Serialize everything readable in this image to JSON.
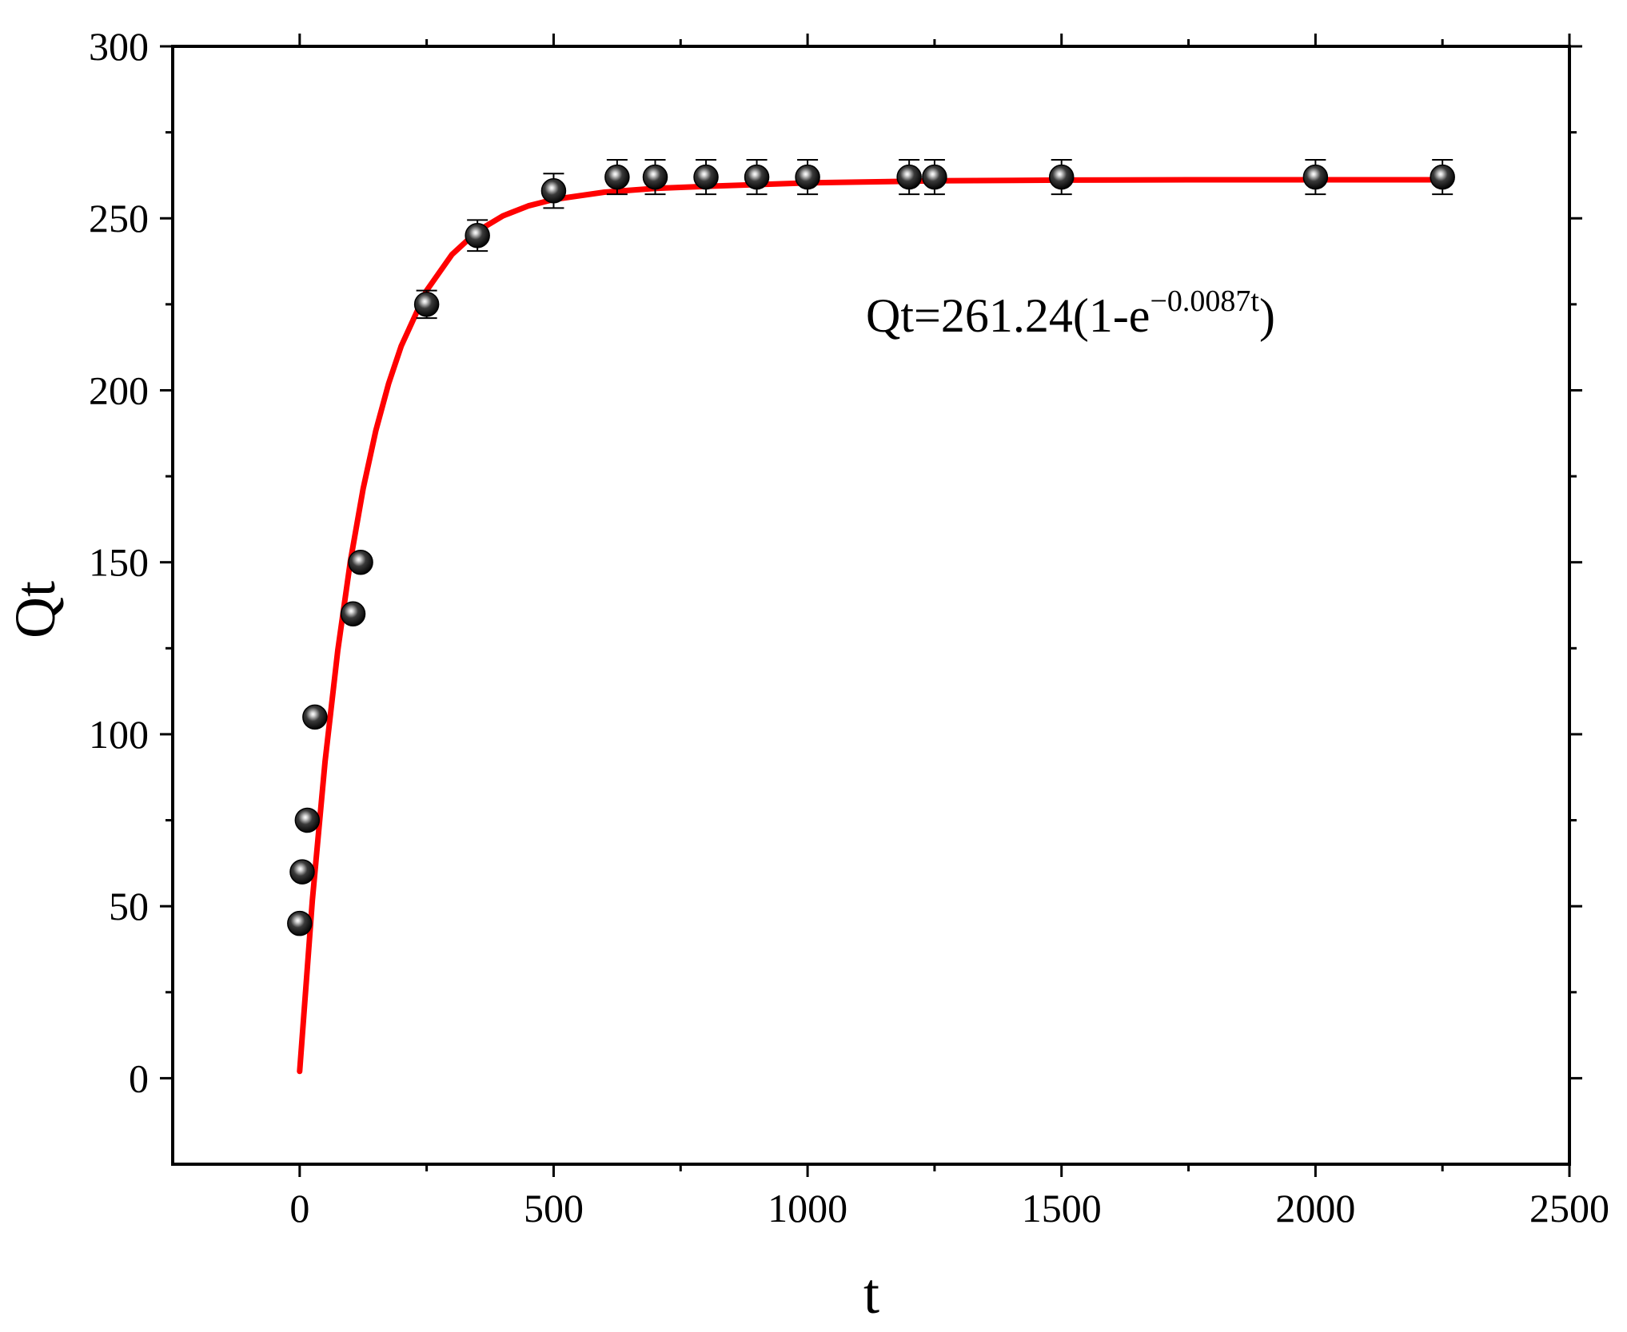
{
  "chart_data": {
    "type": "scatter",
    "xlabel": "t",
    "ylabel": "Qt",
    "xlim": [
      -250,
      2500
    ],
    "ylim": [
      -25,
      300
    ],
    "xticks": [
      0,
      500,
      1000,
      1500,
      2000,
      2500
    ],
    "yticks": [
      0,
      50,
      100,
      150,
      200,
      250,
      300
    ],
    "grid": false,
    "annotation": {
      "text_main": "Qt=261.24(1-e",
      "text_sup": "−0.0087t",
      "text_end": ")"
    },
    "series": [
      {
        "kind": "points",
        "color": "#000000",
        "x": [
          0,
          5,
          15,
          30,
          105,
          120,
          250,
          350,
          500,
          625,
          700,
          800,
          900,
          1000,
          1200,
          1250,
          1500,
          2000,
          2250
        ],
        "y": [
          45,
          60,
          75,
          105,
          135,
          150,
          225,
          245,
          258,
          262,
          262,
          262,
          262,
          262,
          262,
          262,
          262,
          262,
          262
        ],
        "error": [
          1.5,
          1.5,
          1.5,
          1.5,
          1.5,
          1.5,
          4,
          4.5,
          5,
          5,
          5,
          5,
          5,
          5,
          5,
          5,
          5,
          5,
          5
        ]
      },
      {
        "kind": "fit",
        "color": "#ff0000",
        "x": [
          0,
          25,
          50,
          75,
          100,
          125,
          150,
          175,
          200,
          250,
          300,
          350,
          400,
          450,
          500,
          600,
          700,
          800,
          1000,
          1250,
          1500,
          1750,
          2000,
          2250
        ],
        "y": [
          2,
          51.8,
          92.1,
          124.4,
          150.4,
          171.4,
          188.3,
          201.9,
          212.9,
          229.0,
          239.5,
          246.3,
          250.7,
          253.6,
          255.5,
          257.6,
          258.7,
          259.3,
          260.3,
          260.9,
          261.1,
          261.2,
          261.2,
          261.2
        ]
      }
    ]
  }
}
